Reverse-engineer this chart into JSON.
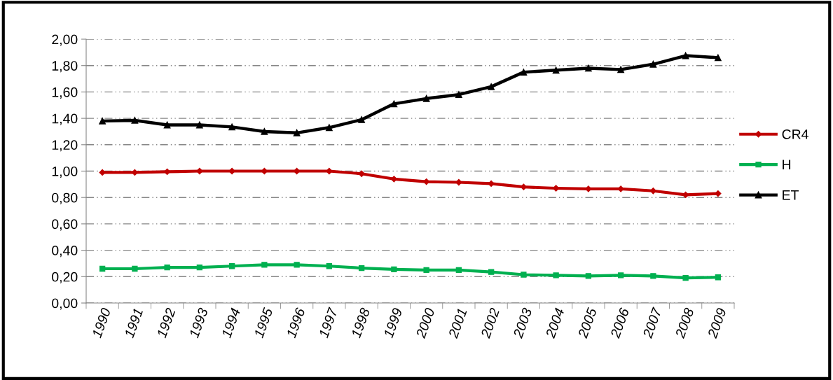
{
  "chart_data": {
    "type": "line",
    "categories": [
      "1990",
      "1991",
      "1992",
      "1993",
      "1994",
      "1995",
      "1996",
      "1997",
      "1998",
      "1999",
      "2000",
      "2001",
      "2002",
      "2003",
      "2004",
      "2005",
      "2006",
      "2007",
      "2008",
      "2009"
    ],
    "series": [
      {
        "name": "CR4",
        "color": "#c00000",
        "marker": "diamond",
        "values": [
          0.99,
          0.99,
          0.995,
          1.0,
          1.0,
          1.0,
          1.0,
          1.0,
          0.98,
          0.94,
          0.92,
          0.915,
          0.905,
          0.88,
          0.87,
          0.865,
          0.865,
          0.85,
          0.82,
          0.83
        ]
      },
      {
        "name": "H",
        "color": "#00b050",
        "marker": "square",
        "values": [
          0.26,
          0.26,
          0.27,
          0.27,
          0.28,
          0.29,
          0.29,
          0.28,
          0.265,
          0.255,
          0.25,
          0.25,
          0.235,
          0.215,
          0.21,
          0.205,
          0.21,
          0.205,
          0.19,
          0.195
        ]
      },
      {
        "name": "ET",
        "color": "#000000",
        "marker": "triangle",
        "values": [
          1.38,
          1.385,
          1.35,
          1.35,
          1.335,
          1.3,
          1.29,
          1.33,
          1.39,
          1.51,
          1.55,
          1.58,
          1.64,
          1.75,
          1.765,
          1.78,
          1.77,
          1.81,
          1.875,
          1.86
        ]
      }
    ],
    "ylim": [
      0,
      2
    ],
    "yticks": [
      {
        "value": 0,
        "label": "0,00"
      },
      {
        "value": 0.2,
        "label": "0,20"
      },
      {
        "value": 0.4,
        "label": "0,40"
      },
      {
        "value": 0.6,
        "label": "0,60"
      },
      {
        "value": 0.8,
        "label": "0,80"
      },
      {
        "value": 1.0,
        "label": "1,00"
      },
      {
        "value": 1.2,
        "label": "1,20"
      },
      {
        "value": 1.4,
        "label": "1,40"
      },
      {
        "value": 1.6,
        "label": "1,60"
      },
      {
        "value": 1.8,
        "label": "1,80"
      },
      {
        "value": 2.0,
        "label": "2,00"
      }
    ],
    "grid": "y",
    "legend": "right",
    "line_style": "solid"
  }
}
